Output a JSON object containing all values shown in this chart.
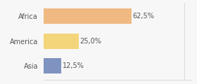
{
  "categories": [
    "Africa",
    "America",
    "Asia"
  ],
  "values": [
    62.5,
    25.0,
    12.5
  ],
  "bar_colors": [
    "#f0b982",
    "#f5d57a",
    "#7f93c0"
  ],
  "labels": [
    "62,5%",
    "25,0%",
    "12,5%"
  ],
  "xlim": [
    0,
    105
  ],
  "background_color": "#f7f7f7",
  "bar_height": 0.62,
  "label_fontsize": 7.0,
  "tick_fontsize": 7.0
}
